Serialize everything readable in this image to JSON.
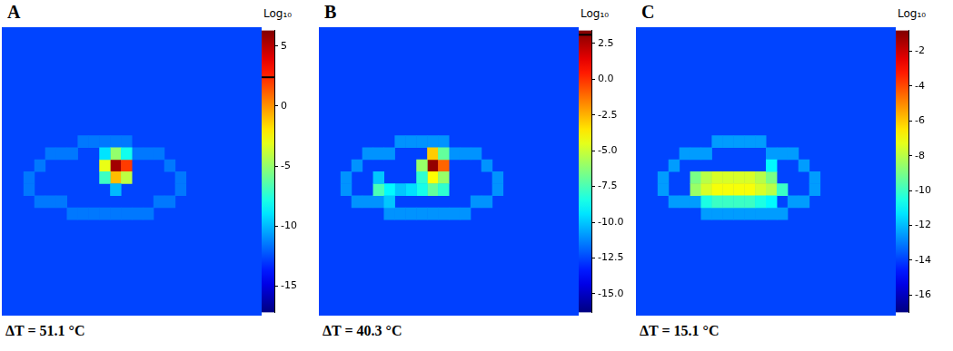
{
  "chart_data": [
    {
      "type": "heatmap",
      "title": "A",
      "annotation": "ΔT = 51.1 °C",
      "tick_labels": false,
      "xlim": [
        0,
        24
      ],
      "ylim": [
        0,
        24
      ],
      "background": -12.7,
      "cells": [
        [
          9,
          7,
          -11.5
        ],
        [
          9,
          8,
          -11.5
        ],
        [
          9,
          9,
          -11.5
        ],
        [
          9,
          10,
          -11.5
        ],
        [
          9,
          11,
          -11.5
        ],
        [
          10,
          4,
          -11.5
        ],
        [
          10,
          5,
          -11.5
        ],
        [
          10,
          6,
          -11.5
        ],
        [
          10,
          12,
          -11.5
        ],
        [
          10,
          13,
          -11.5
        ],
        [
          10,
          14,
          -11.5
        ],
        [
          11,
          3,
          -11.5
        ],
        [
          11,
          15,
          -11.5
        ],
        [
          12,
          2,
          -11.5
        ],
        [
          12,
          16,
          -11.5
        ],
        [
          13,
          2,
          -11.5
        ],
        [
          13,
          16,
          -11.5
        ],
        [
          14,
          3,
          -11.5
        ],
        [
          14,
          4,
          -11.5
        ],
        [
          14,
          5,
          -11.5
        ],
        [
          14,
          14,
          -11.5
        ],
        [
          14,
          15,
          -11.5
        ],
        [
          15,
          6,
          -11.5
        ],
        [
          15,
          7,
          -11.5
        ],
        [
          15,
          8,
          -11.5
        ],
        [
          15,
          9,
          -11.5
        ],
        [
          15,
          10,
          -11.5
        ],
        [
          15,
          11,
          -11.5
        ],
        [
          15,
          12,
          -11.5
        ],
        [
          15,
          13,
          -11.5
        ],
        [
          11,
          10,
          5.5
        ],
        [
          11,
          11,
          2
        ],
        [
          12,
          10,
          -1
        ],
        [
          11,
          9,
          -3
        ],
        [
          10,
          10,
          -5
        ],
        [
          12,
          11,
          -4
        ],
        [
          12,
          9,
          -7
        ],
        [
          10,
          11,
          -8
        ],
        [
          10,
          9,
          -9
        ],
        [
          13,
          10,
          -10
        ]
      ],
      "colorbar": {
        "label": "Log₁₀",
        "range": [
          -17.2,
          6.3
        ],
        "ticks": [
          -15,
          -10,
          -5,
          0,
          5
        ],
        "threshold": 2.4
      }
    },
    {
      "type": "heatmap",
      "title": "B",
      "annotation": "ΔT = 40.3 °C",
      "tick_labels": false,
      "xlim": [
        0,
        24
      ],
      "ylim": [
        0,
        24
      ],
      "background": -12.6,
      "cells": [
        [
          9,
          7,
          -11
        ],
        [
          9,
          8,
          -11
        ],
        [
          9,
          9,
          -11
        ],
        [
          9,
          10,
          -11
        ],
        [
          9,
          11,
          -11
        ],
        [
          10,
          4,
          -11
        ],
        [
          10,
          5,
          -11
        ],
        [
          10,
          6,
          -11
        ],
        [
          10,
          12,
          -11
        ],
        [
          10,
          13,
          -11
        ],
        [
          10,
          14,
          -11
        ],
        [
          11,
          3,
          -11
        ],
        [
          11,
          15,
          -11
        ],
        [
          12,
          2,
          -11
        ],
        [
          12,
          16,
          -11
        ],
        [
          13,
          2,
          -11
        ],
        [
          13,
          16,
          -11
        ],
        [
          14,
          3,
          -11
        ],
        [
          14,
          4,
          -11
        ],
        [
          14,
          5,
          -11
        ],
        [
          14,
          14,
          -11
        ],
        [
          14,
          15,
          -11
        ],
        [
          15,
          6,
          -11
        ],
        [
          15,
          7,
          -11
        ],
        [
          15,
          8,
          -11
        ],
        [
          15,
          9,
          -11
        ],
        [
          15,
          10,
          -11
        ],
        [
          15,
          11,
          -11
        ],
        [
          15,
          12,
          -11
        ],
        [
          15,
          13,
          -11
        ],
        [
          11,
          10,
          3
        ],
        [
          11,
          11,
          -1
        ],
        [
          10,
          10,
          -3
        ],
        [
          12,
          10,
          -4
        ],
        [
          11,
          9,
          -6
        ],
        [
          10,
          11,
          -7
        ],
        [
          12,
          11,
          -6
        ],
        [
          12,
          9,
          -8
        ],
        [
          13,
          10,
          -7
        ],
        [
          13,
          11,
          -8
        ],
        [
          13,
          9,
          -8.5
        ],
        [
          13,
          8,
          -9.5
        ],
        [
          13,
          7,
          -10
        ],
        [
          13,
          6,
          -9
        ],
        [
          13,
          5,
          -7.5
        ],
        [
          12,
          5,
          -10
        ],
        [
          14,
          6,
          -10
        ]
      ],
      "colorbar": {
        "label": "Log₁₀",
        "range": [
          -16.3,
          3.4
        ],
        "ticks": [
          {
            "value": 2.5,
            "label": "2.5"
          },
          {
            "value": 0,
            "label": "0.0"
          },
          {
            "value": -2.5,
            "label": "-2.5"
          },
          {
            "value": -5,
            "label": "-5.0"
          },
          {
            "value": -7.5,
            "label": "-7.5"
          },
          {
            "value": -10,
            "label": "-10.0"
          },
          {
            "value": -12.5,
            "label": "-12.5"
          },
          {
            "value": -15,
            "label": "-15.0"
          }
        ],
        "threshold": 3.1
      }
    },
    {
      "type": "heatmap",
      "title": "C",
      "annotation": "ΔT = 15.1 °C",
      "tick_labels": false,
      "xlim": [
        0,
        24
      ],
      "ylim": [
        0,
        24
      ],
      "background": -13.9,
      "cells": [
        [
          9,
          7,
          -12.5
        ],
        [
          9,
          8,
          -12.5
        ],
        [
          9,
          9,
          -12.5
        ],
        [
          9,
          10,
          -12.5
        ],
        [
          9,
          11,
          -12.5
        ],
        [
          10,
          4,
          -12.5
        ],
        [
          10,
          5,
          -12.5
        ],
        [
          10,
          6,
          -12.5
        ],
        [
          10,
          12,
          -12.5
        ],
        [
          10,
          13,
          -12.5
        ],
        [
          10,
          14,
          -12.5
        ],
        [
          11,
          3,
          -12.5
        ],
        [
          11,
          15,
          -12.5
        ],
        [
          12,
          2,
          -12.5
        ],
        [
          12,
          16,
          -12.5
        ],
        [
          13,
          2,
          -12.5
        ],
        [
          13,
          16,
          -12.5
        ],
        [
          14,
          3,
          -12.5
        ],
        [
          14,
          4,
          -12.5
        ],
        [
          14,
          5,
          -12.5
        ],
        [
          14,
          14,
          -12.5
        ],
        [
          14,
          15,
          -12.5
        ],
        [
          15,
          6,
          -12.5
        ],
        [
          15,
          7,
          -12.5
        ],
        [
          15,
          8,
          -12.5
        ],
        [
          15,
          9,
          -12.5
        ],
        [
          15,
          10,
          -12.5
        ],
        [
          15,
          11,
          -12.5
        ],
        [
          15,
          12,
          -12.5
        ],
        [
          15,
          13,
          -12.5
        ],
        [
          12,
          5,
          -9
        ],
        [
          12,
          6,
          -8
        ],
        [
          12,
          7,
          -7.5
        ],
        [
          12,
          8,
          -7.5
        ],
        [
          12,
          9,
          -7.5
        ],
        [
          12,
          10,
          -7.5
        ],
        [
          12,
          11,
          -8
        ],
        [
          12,
          12,
          -9
        ],
        [
          13,
          5,
          -8.5
        ],
        [
          13,
          6,
          -7.5
        ],
        [
          13,
          7,
          -7
        ],
        [
          13,
          8,
          -7
        ],
        [
          13,
          9,
          -7
        ],
        [
          13,
          10,
          -7
        ],
        [
          13,
          11,
          -7.5
        ],
        [
          13,
          12,
          -8
        ],
        [
          13,
          13,
          -10
        ],
        [
          14,
          6,
          -10.5
        ],
        [
          14,
          7,
          -10
        ],
        [
          14,
          8,
          -10
        ],
        [
          14,
          9,
          -10
        ],
        [
          14,
          10,
          -10
        ],
        [
          14,
          11,
          -10.5
        ],
        [
          14,
          12,
          -11
        ],
        [
          11,
          12,
          -11
        ]
      ],
      "colorbar": {
        "label": "Log₁₀",
        "range": [
          -17,
          -0.8
        ],
        "ticks": [
          -2,
          -4,
          -6,
          -8,
          -10,
          -12,
          -14,
          -16
        ]
      }
    }
  ]
}
